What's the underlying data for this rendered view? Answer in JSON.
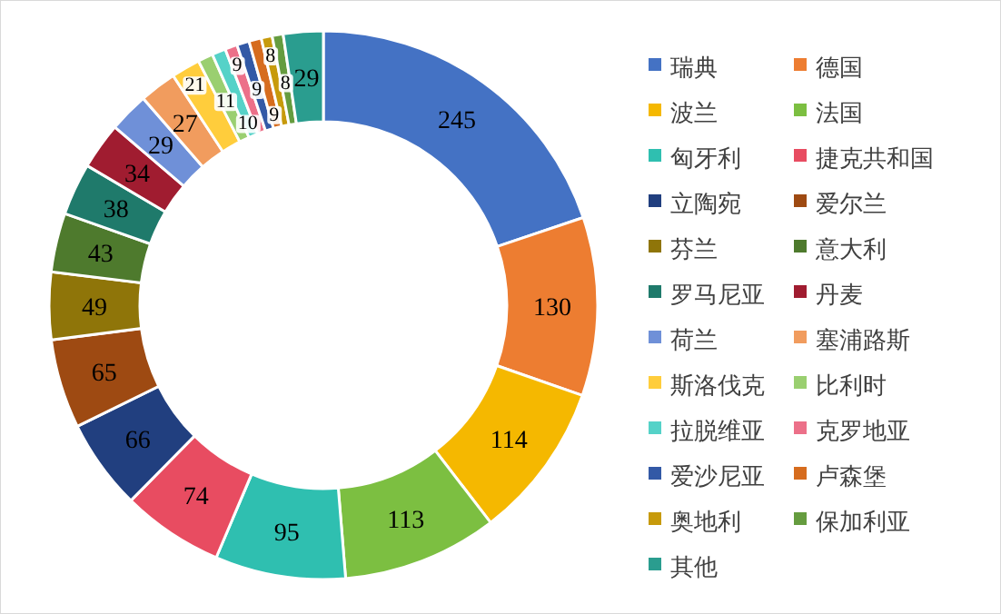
{
  "chart_data": {
    "type": "donut",
    "categories": [
      "瑞典",
      "德国",
      "波兰",
      "法国",
      "匈牙利",
      "捷克共和国",
      "立陶宛",
      "爱尔兰",
      "芬兰",
      "意大利",
      "罗马尼亚",
      "丹麦",
      "荷兰",
      "塞浦路斯",
      "斯洛伐克",
      "比利时",
      "拉脱维亚",
      "克罗地亚",
      "爱沙尼亚",
      "卢森堡",
      "奥地利",
      "保加利亚",
      "其他"
    ],
    "values": [
      245,
      130,
      114,
      113,
      95,
      74,
      66,
      65,
      49,
      43,
      38,
      34,
      29,
      27,
      21,
      11,
      10,
      9,
      9,
      9,
      8,
      8,
      29
    ],
    "colors": [
      "#4472c4",
      "#ed7d31",
      "#f5b800",
      "#7cbf41",
      "#2fbfb0",
      "#e84c61",
      "#213f7f",
      "#9e4a12",
      "#8f7509",
      "#4e7a2d",
      "#1f7a6b",
      "#a01c30",
      "#6f90d8",
      "#f19c5e",
      "#ffcd3c",
      "#9acf70",
      "#55d2c8",
      "#ec7089",
      "#3359a6",
      "#d66c1e",
      "#c79a0b",
      "#659c3f",
      "#2a9d8f"
    ],
    "data_labels": true,
    "legend": "right"
  }
}
